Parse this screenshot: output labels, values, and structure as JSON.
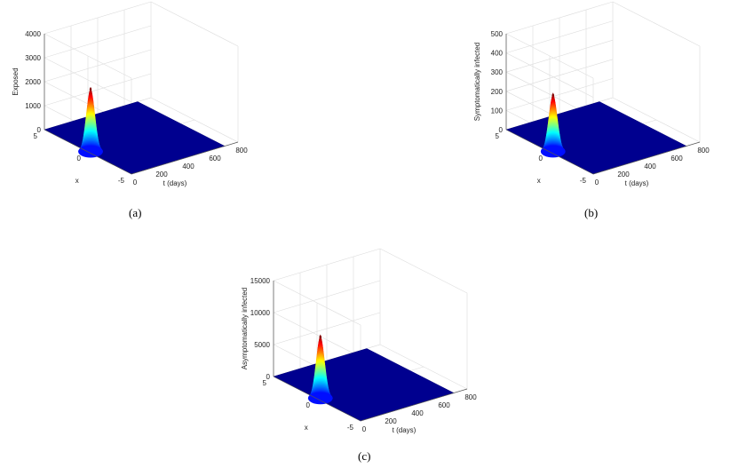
{
  "chart_data": [
    {
      "type": "surface",
      "panel_label": "(a)",
      "zlabel": "Exposed",
      "xlabel": "t (days)",
      "ylabel": "x",
      "t_ticks": [
        0,
        200,
        400,
        600,
        800
      ],
      "x_ticks": [
        5,
        0,
        -5
      ],
      "z_ticks": [
        0,
        1000,
        2000,
        3000,
        4000
      ],
      "t_range": [
        0,
        800
      ],
      "x_range": [
        -5,
        5
      ],
      "zlim": [
        0,
        4000
      ],
      "peak": {
        "t": 20,
        "x": 0,
        "z": 2650
      },
      "grid": true,
      "colormap": "jet"
    },
    {
      "type": "surface",
      "panel_label": "(b)",
      "zlabel": "Symptomatically infected",
      "xlabel": "t (days)",
      "ylabel": "x",
      "t_ticks": [
        0,
        200,
        400,
        600,
        800
      ],
      "x_ticks": [
        5,
        0,
        -5
      ],
      "z_ticks": [
        0,
        100,
        200,
        300,
        400,
        500
      ],
      "t_range": [
        0,
        800
      ],
      "x_range": [
        -5,
        5
      ],
      "zlim": [
        0,
        500
      ],
      "peak": {
        "t": 25,
        "x": 0,
        "z": 300
      },
      "grid": true,
      "colormap": "jet"
    },
    {
      "type": "surface",
      "panel_label": "(c)",
      "zlabel": "Asymptomatically infected",
      "xlabel": "t (days)",
      "ylabel": "x",
      "t_ticks": [
        0,
        200,
        400,
        600,
        800
      ],
      "x_ticks": [
        5,
        0,
        -5
      ],
      "z_ticks": [
        0,
        5000,
        10000,
        15000
      ],
      "t_range": [
        0,
        800
      ],
      "x_range": [
        -5,
        5
      ],
      "zlim": [
        0,
        15000
      ],
      "peak": {
        "t": 25,
        "x": 0,
        "z": 9800
      },
      "grid": true,
      "colormap": "jet"
    }
  ]
}
